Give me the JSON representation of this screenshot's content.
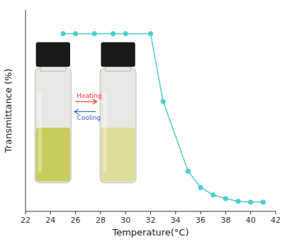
{
  "chart_data": {
    "type": "line",
    "x": [
      25,
      26,
      27.5,
      29,
      30,
      32,
      33,
      35,
      36,
      37,
      38,
      39,
      40,
      41
    ],
    "series": [
      {
        "name": "Transmittance",
        "color": "#4ECECE",
        "marker": "circle",
        "line_style": "solid",
        "values": [
          97,
          97,
          97,
          97,
          97,
          97,
          60,
          22,
          13,
          9,
          7,
          5.5,
          5,
          5
        ]
      }
    ],
    "xlabel": "Temperature(°C)",
    "ylabel": "Transmittance (%)",
    "xlim": [
      22,
      42
    ],
    "ylim": [
      0,
      110
    ],
    "xticks": [
      22,
      24,
      26,
      28,
      30,
      32,
      34,
      36,
      38,
      40,
      42
    ],
    "tick_labels": "x",
    "grid": false,
    "annotations": [
      {
        "text": "Heating",
        "color": "#FF3333"
      },
      {
        "text": "Cooling",
        "color": "#3366CC"
      }
    ]
  }
}
